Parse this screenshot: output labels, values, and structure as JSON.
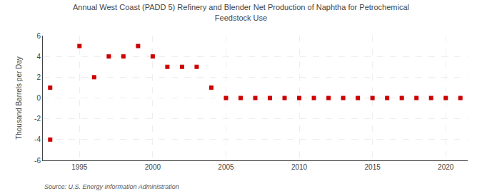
{
  "chart_data": {
    "type": "scatter",
    "title": "Annual West Coast (PADD 5) Refinery and Blender Net Production of Naphtha for Petrochemical\nFeedstock Use",
    "ylabel": "Thousand Barrels per Day",
    "annotations": [
      "Source: U.S. Energy Information Administration"
    ],
    "x": [
      1993,
      1993,
      1995,
      1996,
      1997,
      1998,
      1999,
      2000,
      2001,
      2002,
      2003,
      2004,
      2005,
      2006,
      2007,
      2008,
      2009,
      2010,
      2011,
      2012,
      2013,
      2014,
      2015,
      2016,
      2017,
      2018,
      2019,
      2020,
      2021
    ],
    "values": [
      -4.0,
      1.0,
      5.0,
      2.0,
      4.0,
      4.0,
      5.0,
      4.0,
      3.0,
      3.0,
      3.0,
      1.0,
      0.0,
      0.0,
      0.0,
      0.0,
      0.0,
      0.0,
      0.0,
      0.0,
      0.0,
      0.0,
      0.0,
      0.0,
      0.0,
      0.0,
      0.0,
      0.0,
      0.0
    ],
    "color": "#cc0000",
    "marker": "square",
    "xlim": [
      1992.5,
      2021.5
    ],
    "xticks": [
      1995,
      2000,
      2005,
      2010,
      2015,
      2020
    ],
    "ylim": [
      -6,
      6
    ],
    "yticks": [
      -6,
      -4,
      -2,
      0,
      2,
      4,
      6
    ],
    "grid": true
  }
}
